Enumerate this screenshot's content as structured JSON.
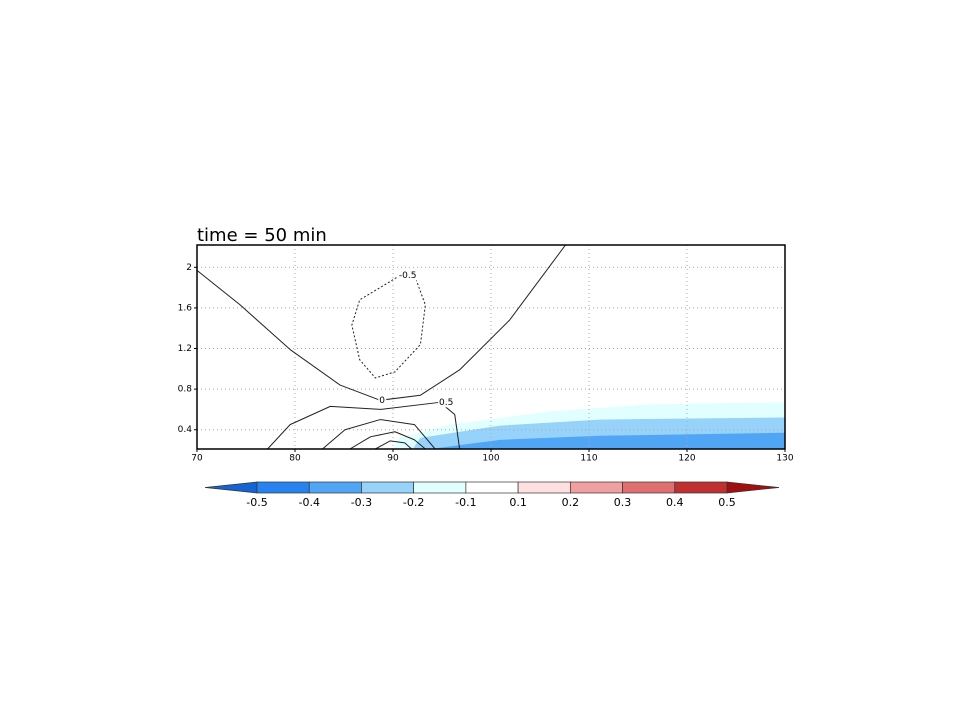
{
  "chart_data": {
    "type": "contour",
    "title": "time = 50 min",
    "xlim": [
      70,
      130
    ],
    "xticks": [
      70,
      80,
      90,
      100,
      110,
      120,
      130
    ],
    "ylim": [
      0.21,
      2.22
    ],
    "yticks": [
      0.4,
      0.8,
      1.2,
      1.6,
      2
    ],
    "grid": true,
    "shading": [
      {
        "color": "#e1ffff",
        "x": [
          90.7,
          95.8,
          106,
          116.2,
          130,
          130,
          90
        ],
        "y": [
          0.32,
          0.45,
          0.58,
          0.65,
          0.67,
          0.21,
          0.21
        ]
      },
      {
        "color": "#96d2fa",
        "x": [
          92.8,
          100.9,
          111.1,
          130,
          130,
          92
        ],
        "y": [
          0.32,
          0.44,
          0.5,
          0.52,
          0.21,
          0.21
        ]
      },
      {
        "color": "#50a5f5",
        "x": [
          93.8,
          100.9,
          111.1,
          130,
          130
        ],
        "y": [
          0.21,
          0.3,
          0.34,
          0.37,
          0.21
        ]
      }
    ],
    "contours": [
      {
        "level": 0,
        "x": [
          70,
          74.4,
          79.5,
          84.6,
          88.7,
          92.8,
          96.8,
          101.9,
          107.6
        ],
        "y": [
          1.97,
          1.63,
          1.19,
          0.84,
          0.69,
          0.74,
          0.99,
          1.48,
          2.22
        ]
      },
      {
        "level": -0.5,
        "dashed": true,
        "x": [
          90.7,
          89.2,
          86.6,
          85.8,
          86.6,
          88.2,
          90.2,
          92.8,
          93.3,
          92.2,
          90.7
        ],
        "y": [
          1.92,
          1.83,
          1.68,
          1.43,
          1.09,
          0.91,
          0.97,
          1.24,
          1.63,
          1.92,
          1.92
        ]
      },
      {
        "level": 0.5,
        "x": [
          77.2,
          79.5,
          83.6,
          88.7,
          94.8,
          96.3,
          96.8
        ],
        "y": [
          0.21,
          0.45,
          0.63,
          0.6,
          0.67,
          0.55,
          0.21
        ]
      },
      {
        "x": [
          82.8,
          85.1,
          88.7,
          92.2,
          94.3
        ],
        "y": [
          0.21,
          0.4,
          0.5,
          0.45,
          0.21
        ]
      },
      {
        "x": [
          85.6,
          87.7,
          90.2,
          92.2,
          93.3
        ],
        "y": [
          0.21,
          0.33,
          0.38,
          0.3,
          0.21
        ]
      },
      {
        "x": [
          88.2,
          89.7,
          91.2,
          91.9
        ],
        "y": [
          0.21,
          0.29,
          0.27,
          0.21
        ]
      }
    ],
    "colorbar": {
      "labels": [
        -0.5,
        -0.4,
        -0.3,
        -0.2,
        -0.1,
        0.1,
        0.2,
        0.3,
        0.4,
        0.5
      ],
      "colors": [
        "#1464d2",
        "#2882f0",
        "#50a5f5",
        "#96d2fa",
        "#e1ffff",
        "#ffffff",
        "#ffe0e0",
        "#f0a0a0",
        "#e07070",
        "#c03030",
        "#a01010"
      ]
    }
  }
}
